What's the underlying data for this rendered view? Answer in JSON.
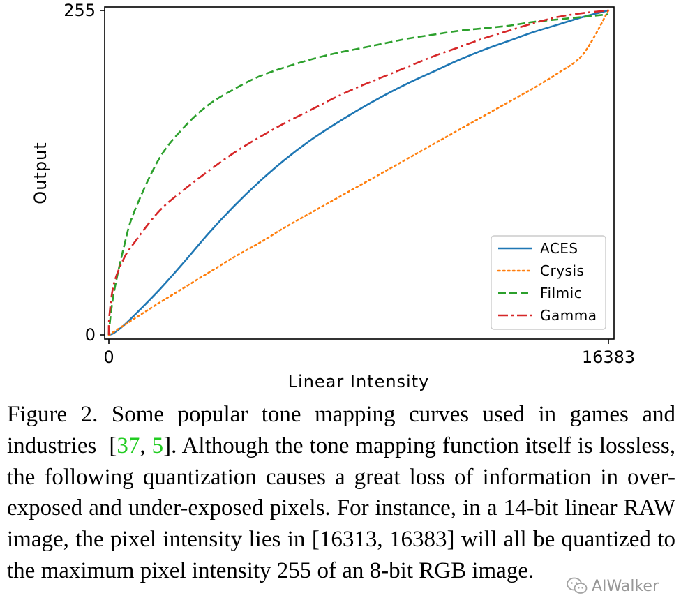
{
  "chart_data": {
    "type": "line",
    "xlabel": "Linear Intensity",
    "ylabel": "Output",
    "xlim": [
      0,
      16383
    ],
    "ylim": [
      0,
      255
    ],
    "xticks": [
      "0",
      "16383"
    ],
    "yticks": [
      "0",
      "255"
    ],
    "grid": false,
    "legend_position": "lower-right",
    "x": [
      0,
      16.383,
      163.83,
      491.49,
      819.15,
      1638.3,
      2457.45,
      3276.6,
      4095.75,
      4914.9,
      5734.05,
      6553.2,
      7372.35,
      8191.5,
      9010.65,
      9829.8,
      10648.95,
      11468.1,
      12287.25,
      13106.4,
      13925.55,
      14744.7,
      15563.85,
      16383
    ],
    "series": [
      {
        "name": "ACES",
        "color": "#1f77b4",
        "dash": "solid",
        "values": [
          0,
          0.1,
          1.5,
          7.5,
          15,
          35,
          57,
          80,
          101,
          120,
          137,
          152,
          165,
          177,
          188,
          198,
          207,
          216,
          224,
          231,
          238,
          244,
          250,
          255
        ]
      },
      {
        "name": "Crysis",
        "color": "#ff7f0e",
        "dash": "dotted",
        "values": [
          0,
          0.25,
          2.5,
          7.5,
          12.5,
          25,
          37,
          49,
          61,
          72,
          84,
          95,
          106,
          117,
          128,
          139,
          150,
          161,
          172,
          183,
          194,
          206,
          221,
          255
        ]
      },
      {
        "name": "Filmic",
        "color": "#2ca02c",
        "dash": "dashed",
        "values": [
          0,
          6,
          33,
          69,
          96,
          138,
          163,
          181,
          193,
          203,
          210,
          216,
          221,
          225,
          229,
          233,
          236,
          239,
          241,
          243,
          246,
          248,
          250,
          252
        ]
      },
      {
        "name": "Gamma",
        "color": "#d62728",
        "dash": "dashdot",
        "values": [
          0,
          15,
          40,
          60,
          72,
          97,
          114,
          129,
          143,
          155,
          166,
          176,
          186,
          195,
          203,
          211,
          219,
          226,
          233,
          239,
          245,
          250,
          253,
          255
        ]
      }
    ]
  },
  "caption": {
    "label": "Figure 2.",
    "text_1": "Some popular tone mapping curves used in games and industries",
    "cite_open": "[",
    "cite_1": "37",
    "cite_sep": ", ",
    "cite_2": "5",
    "cite_close": "].",
    "text_2": "Although the tone mapping function itself is lossless, the following quantization causes a great loss of information in over-exposed and under-exposed pixels. For instance, in a 14-bit linear RAW image, the pixel intensity lies in [16313, 16383] will all be quantized to the maximum pixel intensity 255 of an 8-bit RGB image."
  },
  "watermark": {
    "text": "AIWalker",
    "icon": "wechat-icon"
  }
}
